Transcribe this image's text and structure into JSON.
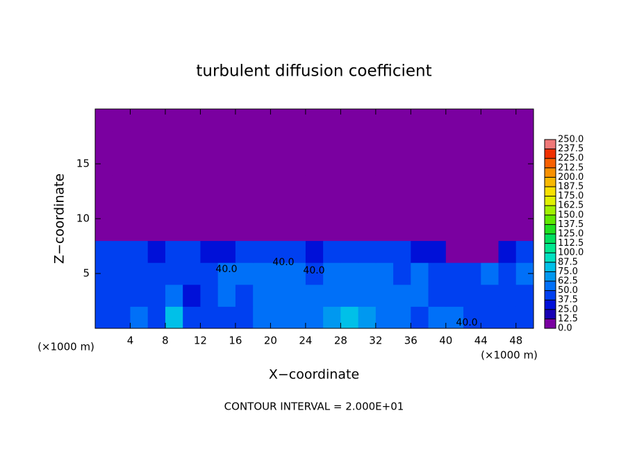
{
  "chart_data": {
    "type": "heatmap",
    "title": "turbulent diffusion coefficient",
    "xlabel": "X−coordinate",
    "ylabel": "Z−coordinate",
    "x_unit_label": "(×1000 m)",
    "x_unit_label_2": "(×1000 m)",
    "footer": "CONTOUR INTERVAL = 2.000E+01",
    "contour_labels": [
      "40.0",
      "40.0",
      "40.0",
      "40.0"
    ],
    "xlim": [
      0,
      50
    ],
    "ylim": [
      0,
      20
    ],
    "xticks": [
      4,
      8,
      12,
      16,
      20,
      24,
      28,
      32,
      36,
      40,
      44,
      48
    ],
    "yticks": [
      5,
      10,
      15
    ],
    "x": [
      1,
      3,
      5,
      7,
      9,
      11,
      13,
      15,
      17,
      19,
      21,
      23,
      25,
      27,
      29,
      31,
      33,
      35,
      37,
      39,
      41,
      43,
      45,
      47,
      49
    ],
    "y": [
      1,
      3,
      5,
      7,
      9,
      11,
      13,
      15,
      17,
      19
    ],
    "z": [
      [
        40,
        45,
        55,
        45,
        80,
        40,
        45,
        40,
        45,
        50,
        55,
        50,
        60,
        70,
        75,
        65,
        50,
        55,
        45,
        60,
        50,
        45,
        40,
        45,
        45
      ],
      [
        45,
        40,
        40,
        45,
        50,
        35,
        40,
        50,
        45,
        55,
        50,
        55,
        60,
        55,
        50,
        55,
        60,
        50,
        55,
        45,
        40,
        45,
        45,
        40,
        45
      ],
      [
        45,
        45,
        45,
        40,
        45,
        40,
        45,
        55,
        50,
        50,
        55,
        50,
        45,
        50,
        55,
        50,
        55,
        45,
        50,
        45,
        45,
        40,
        50,
        45,
        50
      ],
      [
        45,
        40,
        40,
        35,
        40,
        40,
        30,
        35,
        45,
        40,
        45,
        40,
        35,
        45,
        40,
        40,
        45,
        40,
        35,
        35,
        0,
        0,
        0,
        30,
        40
      ],
      [
        0,
        0,
        0,
        0,
        0,
        0,
        0,
        0,
        0,
        0,
        0,
        0,
        0,
        0,
        0,
        0,
        0,
        0,
        0,
        0,
        0,
        0,
        0,
        0,
        0
      ],
      [
        0,
        0,
        0,
        0,
        0,
        0,
        0,
        0,
        0,
        0,
        0,
        0,
        0,
        0,
        0,
        0,
        0,
        0,
        0,
        0,
        0,
        0,
        0,
        0,
        0
      ],
      [
        0,
        0,
        0,
        0,
        0,
        0,
        0,
        0,
        0,
        0,
        0,
        0,
        0,
        0,
        0,
        0,
        0,
        0,
        0,
        0,
        0,
        0,
        0,
        0,
        0
      ],
      [
        0,
        0,
        0,
        0,
        0,
        0,
        0,
        0,
        0,
        0,
        0,
        0,
        0,
        0,
        0,
        0,
        0,
        0,
        0,
        0,
        0,
        0,
        0,
        0,
        0
      ],
      [
        0,
        0,
        0,
        0,
        0,
        0,
        0,
        0,
        0,
        0,
        0,
        0,
        0,
        0,
        0,
        0,
        0,
        0,
        0,
        0,
        0,
        0,
        0,
        0,
        0
      ],
      [
        0,
        0,
        0,
        0,
        0,
        0,
        0,
        0,
        0,
        0,
        0,
        0,
        0,
        0,
        0,
        0,
        0,
        0,
        0,
        0,
        0,
        0,
        0,
        0,
        0
      ]
    ],
    "colorbar_ticks": [
      {
        "value": 0,
        "label": "0.0"
      },
      12.5,
      {
        "value": 25,
        "label": "25.0"
      },
      37.5,
      {
        "value": 50,
        "label": "50.0"
      },
      62.5,
      {
        "value": 75,
        "label": "75.0"
      },
      87.5,
      {
        "value": 100,
        "label": "100.0"
      },
      112.5,
      {
        "value": 125,
        "label": "125.0"
      },
      137.5,
      {
        "value": 150,
        "label": "150.0"
      },
      162.5,
      {
        "value": 175,
        "label": "175.0"
      },
      187.5,
      {
        "value": 200,
        "label": "200.0"
      },
      212.5,
      {
        "value": 225,
        "label": "225.0"
      },
      237.5,
      {
        "value": 250,
        "label": "250.0"
      }
    ],
    "colors": [
      "#7a00a0",
      "#1800b4",
      "#0010d8",
      "#0040f0",
      "#0070f8",
      "#0098f0",
      "#00c0e8",
      "#00e0c0",
      "#00e890",
      "#00e060",
      "#20e020",
      "#60e800",
      "#a0f000",
      "#e0f000",
      "#f8e000",
      "#f8b800",
      "#f89000",
      "#f86000",
      "#f03000",
      "#f07878"
    ]
  }
}
